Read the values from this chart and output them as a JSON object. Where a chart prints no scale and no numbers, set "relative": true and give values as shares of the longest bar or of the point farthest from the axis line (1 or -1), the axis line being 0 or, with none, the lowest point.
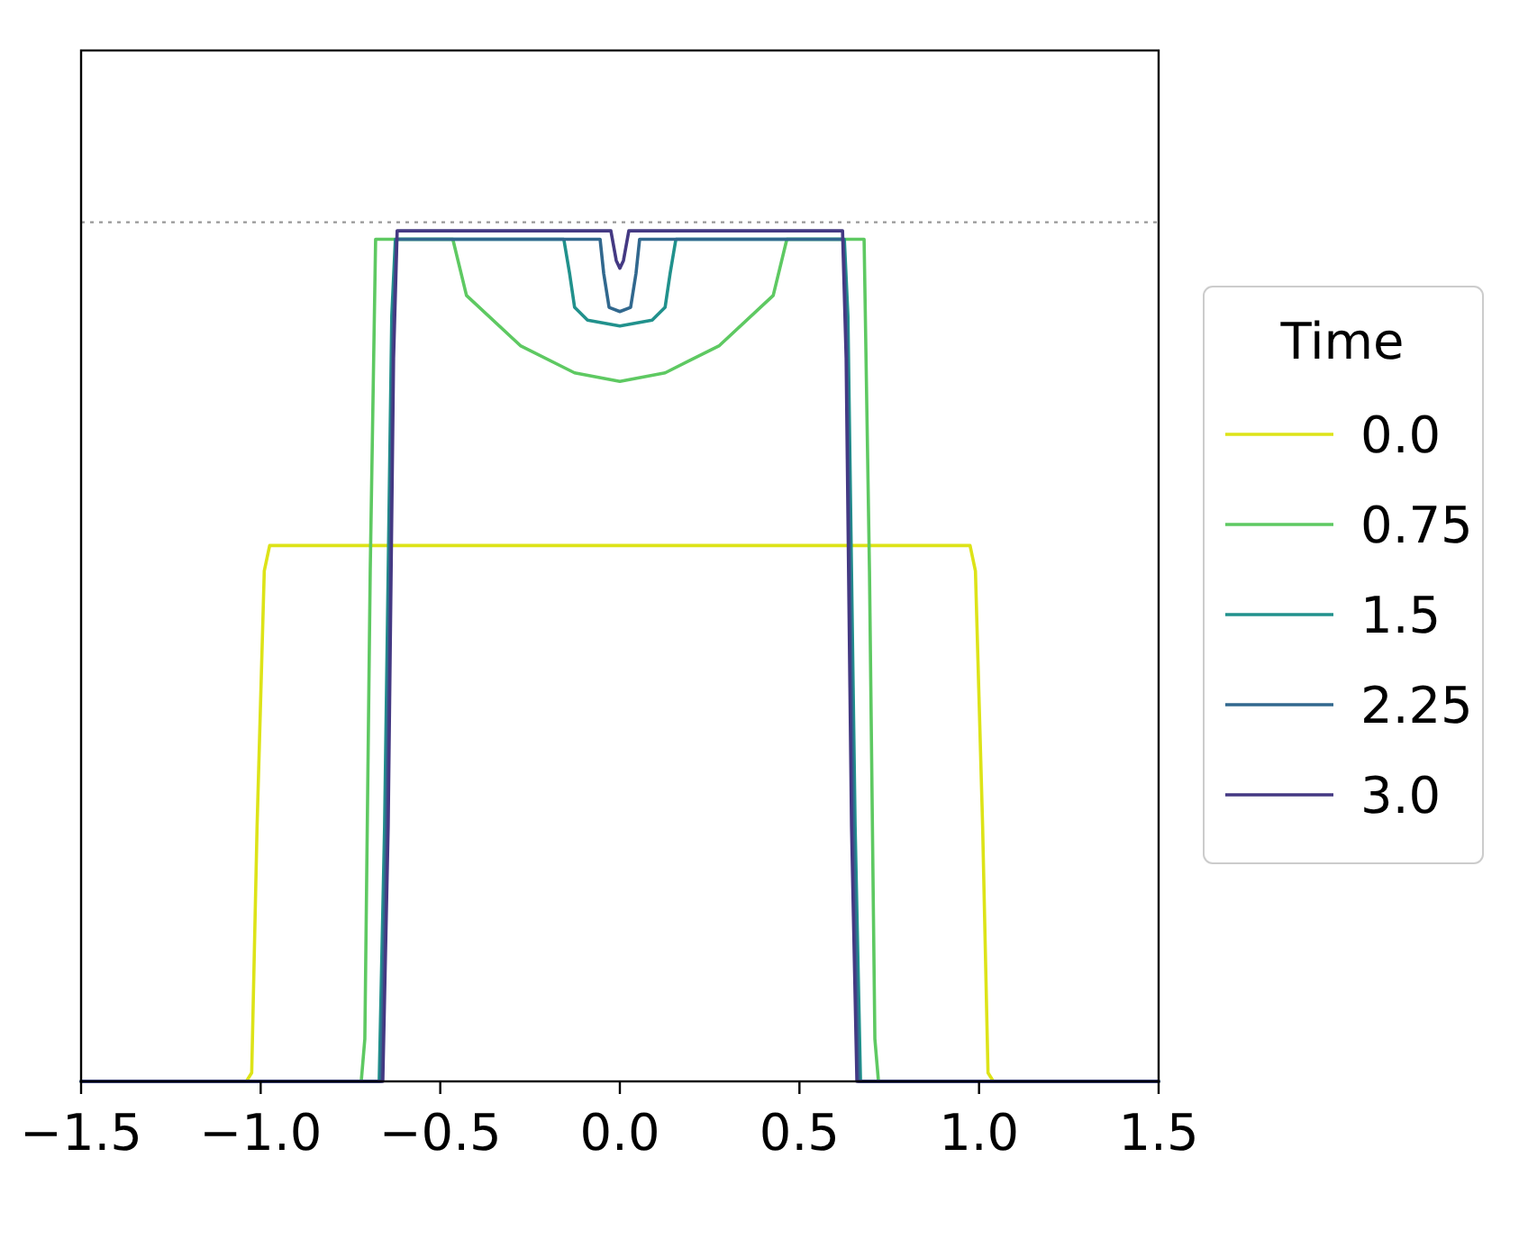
{
  "chart_data": {
    "type": "line",
    "relative": true,
    "legend_title": "Time",
    "legend": "right",
    "line_style": "solid",
    "xlim": [
      -1.5,
      1.5
    ],
    "xticks": [
      {
        "value": -1.5,
        "label": "−1.5"
      },
      {
        "value": -1.0,
        "label": "−1.0"
      },
      {
        "value": -0.5,
        "label": "−0.5"
      },
      {
        "value": 0,
        "label": "0.0"
      },
      {
        "value": 0.5,
        "label": "0.5"
      },
      {
        "value": 1.0,
        "label": "1.0"
      },
      {
        "value": 1.5,
        "label": "1.5"
      }
    ],
    "ref_lines": [
      {
        "axis": "y",
        "value": 1.01,
        "color": "#999999",
        "line_style": "dotted"
      }
    ],
    "series": [
      {
        "name": "0.0",
        "color": "#dde318",
        "x": [
          -1.5,
          -1.04,
          -1.025,
          -1.01,
          -0.99,
          -0.975,
          0.975,
          0.99,
          1.01,
          1.025,
          1.04,
          1.5
        ],
        "values": [
          0,
          0,
          0.01,
          0.3,
          0.6,
          0.63,
          0.63,
          0.6,
          0.3,
          0.01,
          0,
          0
        ]
      },
      {
        "name": "0.75",
        "color": "#5ec962",
        "x": [
          -1.5,
          -0.72,
          -0.71,
          -0.695,
          -0.68,
          -0.465,
          -0.427,
          -0.277,
          -0.126,
          0,
          0.126,
          0.277,
          0.427,
          0.465,
          0.68,
          0.695,
          0.71,
          0.72,
          1.5
        ],
        "values": [
          0,
          0,
          0.05,
          0.6,
          0.99,
          0.99,
          0.924,
          0.865,
          0.833,
          0.823,
          0.833,
          0.865,
          0.924,
          0.99,
          0.99,
          0.6,
          0.05,
          0,
          0
        ]
      },
      {
        "name": "1.5",
        "color": "#21918c",
        "x": [
          -1.5,
          -0.67,
          -0.655,
          -0.635,
          -0.625,
          -0.156,
          -0.14,
          -0.126,
          -0.09,
          0,
          0.09,
          0.126,
          0.14,
          0.156,
          0.625,
          0.635,
          0.655,
          0.67,
          1.5
        ],
        "values": [
          0,
          0,
          0.3,
          0.9,
          0.99,
          0.99,
          0.95,
          0.91,
          0.895,
          0.888,
          0.895,
          0.91,
          0.95,
          0.99,
          0.99,
          0.9,
          0.3,
          0,
          0
        ]
      },
      {
        "name": "2.25",
        "color": "#31688e",
        "x": [
          -1.5,
          -0.665,
          -0.65,
          -0.632,
          -0.622,
          -0.055,
          -0.045,
          -0.03,
          0,
          0.03,
          0.045,
          0.055,
          0.622,
          0.632,
          0.65,
          0.665,
          1.5
        ],
        "values": [
          0,
          0,
          0.3,
          0.88,
          0.99,
          0.99,
          0.95,
          0.91,
          0.905,
          0.91,
          0.95,
          0.99,
          0.99,
          0.88,
          0.3,
          0,
          0
        ]
      },
      {
        "name": "3.0",
        "color": "#443983",
        "x": [
          -1.5,
          -0.66,
          -0.645,
          -0.63,
          -0.62,
          -0.025,
          -0.01,
          0,
          0.01,
          0.025,
          0.62,
          0.63,
          0.645,
          0.66,
          1.5
        ],
        "values": [
          0,
          0,
          0.3,
          0.85,
          1,
          1,
          0.965,
          0.956,
          0.965,
          1,
          1,
          0.85,
          0.3,
          0,
          0
        ]
      }
    ]
  }
}
